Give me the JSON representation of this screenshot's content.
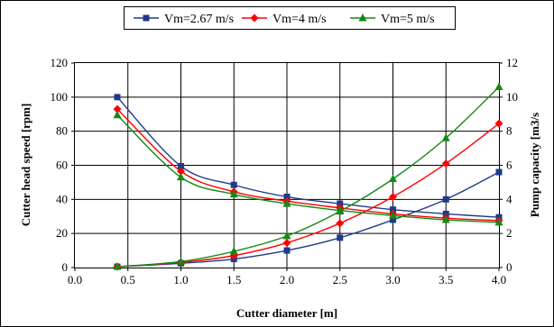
{
  "chart_data": {
    "type": "line",
    "xlabel": "Cutter diameter [m]",
    "ylabel": "Cutter head speed [rpm]",
    "y2label": "Pump capacity [m3/s",
    "xlim": [
      0.0,
      4.0
    ],
    "ylim": [
      0,
      120
    ],
    "y2lim": [
      0,
      12
    ],
    "x_ticks": [
      "0.0",
      "0.5",
      "1.0",
      "1.5",
      "2.0",
      "2.5",
      "3.0",
      "3.5",
      "4.0"
    ],
    "y_ticks": [
      "0",
      "20",
      "40",
      "60",
      "80",
      "100",
      "120"
    ],
    "y2_ticks": [
      "0",
      "2",
      "4",
      "6",
      "8",
      "10",
      "12"
    ],
    "grid": true,
    "legend_position": "top",
    "x": [
      0.4,
      1.0,
      1.5,
      2.0,
      2.5,
      3.0,
      3.5,
      4.0
    ],
    "series": [
      {
        "name": "Vm=2.67 m/s",
        "color": "#1f3a8a",
        "marker": "square",
        "speed": [
          100.0,
          59.5,
          48.5,
          41.5,
          37.5,
          34.0,
          31.5,
          29.5
        ],
        "capacity": [
          0.05,
          0.25,
          0.5,
          1.0,
          1.75,
          2.8,
          4.0,
          5.6
        ]
      },
      {
        "name": "Vm=4 m/s",
        "color": "#ff0000",
        "marker": "diamond",
        "speed": [
          93.0,
          56.5,
          44.5,
          39.0,
          35.0,
          31.5,
          29.0,
          27.5
        ],
        "capacity": [
          0.05,
          0.3,
          0.7,
          1.45,
          2.6,
          4.15,
          6.1,
          8.45
        ]
      },
      {
        "name": "Vm=5 m/s",
        "color": "#138a13",
        "marker": "triangle",
        "speed": [
          89.5,
          53.0,
          43.0,
          37.5,
          33.5,
          30.5,
          28.0,
          26.5
        ],
        "capacity": [
          0.05,
          0.35,
          0.95,
          1.85,
          3.3,
          5.2,
          7.6,
          10.6
        ]
      }
    ]
  }
}
